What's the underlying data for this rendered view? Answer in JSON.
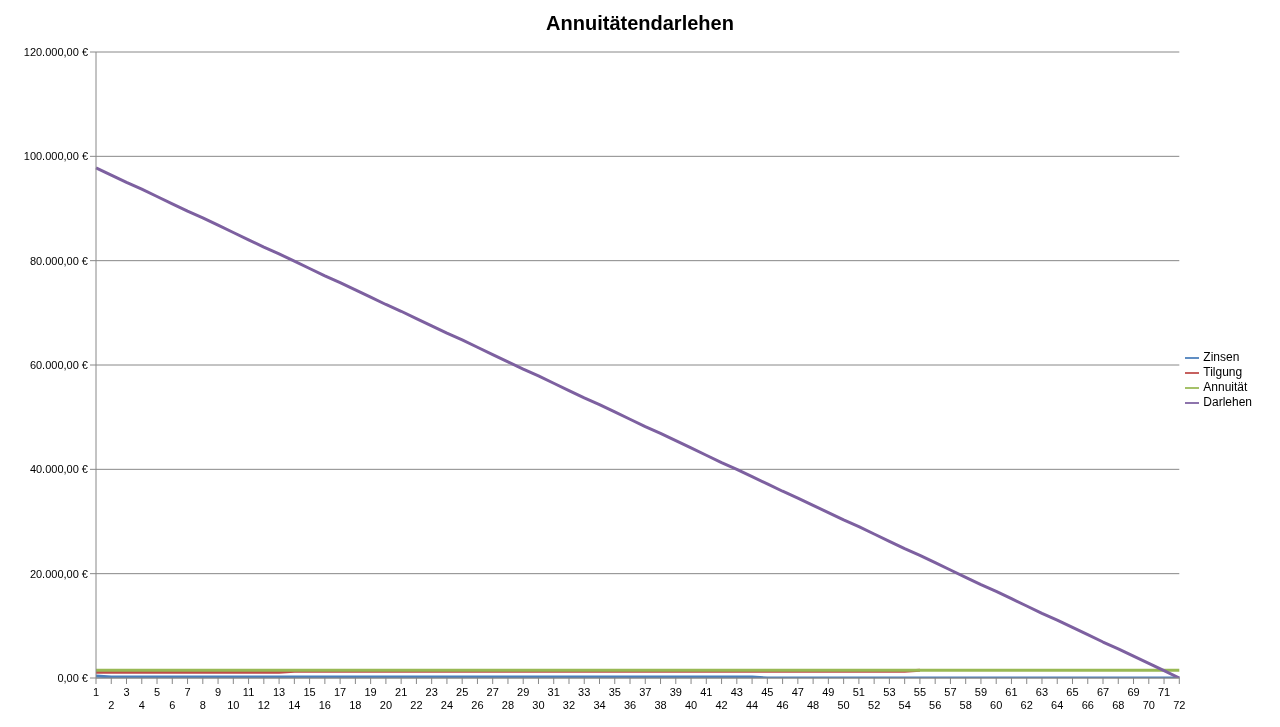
{
  "chart_data": {
    "type": "line",
    "title": "Annuitätendarlehen",
    "categories": [
      "1",
      "2",
      "3",
      "4",
      "5",
      "6",
      "7",
      "8",
      "9",
      "10",
      "11",
      "12",
      "13",
      "14",
      "15",
      "16",
      "17",
      "18",
      "19",
      "20",
      "21",
      "22",
      "23",
      "24",
      "25",
      "26",
      "27",
      "28",
      "29",
      "30",
      "31",
      "32",
      "33",
      "34",
      "35",
      "36",
      "37",
      "38",
      "39",
      "40",
      "41",
      "42",
      "43",
      "44",
      "45",
      "46",
      "47",
      "48",
      "49",
      "50",
      "51",
      "52",
      "53",
      "54",
      "55",
      "56",
      "57",
      "58",
      "59",
      "60",
      "61",
      "62",
      "63",
      "64",
      "65",
      "66",
      "67",
      "68",
      "69",
      "70",
      "71",
      "72"
    ],
    "series": [
      {
        "name": "Zinsen",
        "color": "#4a7ebb",
        "values": [
          400,
          200,
          200,
          200,
          200,
          200,
          200,
          200,
          200,
          200,
          200,
          200,
          200,
          200,
          200,
          200,
          200,
          200,
          200,
          200,
          200,
          200,
          200,
          200,
          200,
          200,
          200,
          200,
          200,
          200,
          200,
          200,
          200,
          200,
          200,
          200,
          200,
          200,
          200,
          200,
          200,
          200,
          200,
          200,
          0,
          0,
          0,
          0,
          0,
          0,
          0,
          0,
          0,
          0,
          0,
          0,
          0,
          0,
          0,
          0,
          0,
          0,
          0,
          0,
          0,
          0,
          0,
          0,
          0,
          0,
          0,
          0
        ]
      },
      {
        "name": "Tilgung",
        "color": "#be4b48",
        "values": [
          1100,
          1100,
          1100,
          1100,
          1100,
          1100,
          1100,
          1100,
          1100,
          1100,
          1100,
          1100,
          1100,
          1300,
          1300,
          1300,
          1300,
          1300,
          1300,
          1300,
          1300,
          1300,
          1300,
          1300,
          1300,
          1300,
          1300,
          1300,
          1300,
          1300,
          1300,
          1300,
          1300,
          1300,
          1300,
          1300,
          1300,
          1300,
          1300,
          1300,
          1300,
          1300,
          1300,
          1300,
          1300,
          1300,
          1300,
          1300,
          1300,
          1300,
          1300,
          1300,
          1300,
          1300,
          1500,
          null,
          null,
          null,
          null,
          null,
          null,
          null,
          null,
          null,
          null,
          null,
          null,
          null,
          null,
          null,
          null,
          null
        ]
      },
      {
        "name": "Annuität",
        "color": "#98b954",
        "values": [
          1500,
          1500,
          1500,
          1500,
          1500,
          1500,
          1500,
          1500,
          1500,
          1500,
          1500,
          1500,
          1500,
          1500,
          1500,
          1500,
          1500,
          1500,
          1500,
          1500,
          1500,
          1500,
          1500,
          1500,
          1500,
          1500,
          1500,
          1500,
          1500,
          1500,
          1500,
          1500,
          1500,
          1500,
          1500,
          1500,
          1500,
          1500,
          1500,
          1500,
          1500,
          1500,
          1500,
          1500,
          1500,
          1500,
          1500,
          1500,
          1500,
          1500,
          1500,
          1500,
          1500,
          1500,
          1500,
          1500,
          1500,
          1500,
          1500,
          1500,
          1500,
          1500,
          1500,
          1500,
          1500,
          1500,
          1500,
          1500,
          1500,
          1500,
          1500,
          1500
        ]
      },
      {
        "name": "Darlehen",
        "color": "#7d60a0",
        "values": [
          97800,
          96400,
          95000,
          93700,
          92300,
          90900,
          89500,
          88200,
          86800,
          85400,
          84000,
          82600,
          81300,
          79900,
          78500,
          77100,
          75800,
          74400,
          73000,
          71600,
          70300,
          68900,
          67500,
          66100,
          64800,
          63400,
          62000,
          60600,
          59200,
          57900,
          56500,
          55100,
          53700,
          52400,
          51000,
          49600,
          48200,
          46900,
          45500,
          44100,
          42700,
          41300,
          40000,
          38600,
          37200,
          35800,
          34500,
          33100,
          31700,
          30300,
          29000,
          27600,
          26200,
          24800,
          23500,
          22100,
          20700,
          19300,
          17900,
          16600,
          15200,
          13800,
          12400,
          11100,
          9700,
          8300,
          6900,
          5600,
          4200,
          2800,
          1400,
          0
        ]
      }
    ],
    "ylim": [
      0,
      120000
    ],
    "yticks": [
      {
        "value": 0,
        "label": "0,00 €"
      },
      {
        "value": 20000,
        "label": "20.000,00 €"
      },
      {
        "value": 40000,
        "label": "40.000,00 €"
      },
      {
        "value": 60000,
        "label": "60.000,00 €"
      },
      {
        "value": 80000,
        "label": "80.000,00 €"
      },
      {
        "value": 100000,
        "label": "100.000,00 €"
      },
      {
        "value": 120000,
        "label": "120.000,00 €"
      }
    ],
    "grid": "y",
    "legend": "right",
    "marker": "none",
    "line_style": "solid"
  }
}
